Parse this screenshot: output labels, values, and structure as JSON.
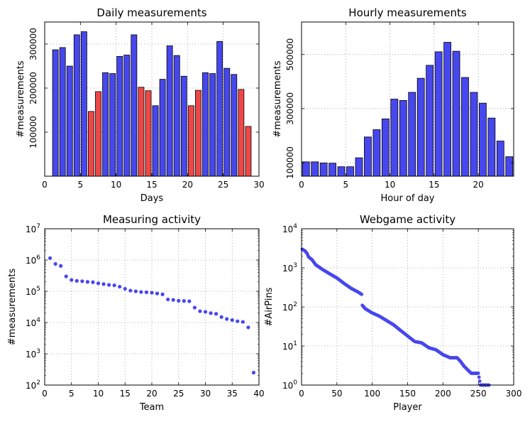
{
  "figure": {
    "panels": 4
  },
  "colors": {
    "blue": "#4747ee",
    "red": "#ee4747",
    "edge": "#000000",
    "grid": "#9a9a9a"
  },
  "chart_data": [
    {
      "id": "daily",
      "type": "bar",
      "title": "Daily measurements",
      "xlabel": "Days",
      "ylabel": "#measurements",
      "xlim": [
        0,
        30
      ],
      "ylim": [
        0,
        350000
      ],
      "xticks": [
        0,
        5,
        10,
        15,
        20,
        25,
        30
      ],
      "yticks": [
        100000,
        200000,
        300000
      ],
      "x": [
        1,
        2,
        3,
        4,
        5,
        6,
        7,
        8,
        9,
        10,
        11,
        12,
        13,
        14,
        15,
        16,
        17,
        18,
        19,
        20,
        21,
        22,
        23,
        24,
        25,
        26,
        27,
        28
      ],
      "values": [
        287000,
        292000,
        250000,
        321000,
        328000,
        147000,
        192000,
        235000,
        233000,
        272000,
        275000,
        321000,
        202000,
        194000,
        160000,
        220000,
        296000,
        274000,
        227000,
        160000,
        195000,
        235000,
        233000,
        306000,
        245000,
        231000,
        197000,
        113000
      ],
      "bar_colors": [
        "blue",
        "blue",
        "blue",
        "blue",
        "blue",
        "red",
        "red",
        "blue",
        "blue",
        "blue",
        "blue",
        "blue",
        "red",
        "red",
        "blue",
        "blue",
        "blue",
        "blue",
        "blue",
        "red",
        "red",
        "blue",
        "blue",
        "blue",
        "blue",
        "blue",
        "red",
        "red"
      ]
    },
    {
      "id": "hourly",
      "type": "bar",
      "title": "Hourly measurements",
      "xlabel": "Hour of day",
      "ylabel": "#measurements",
      "xlim": [
        0,
        24
      ],
      "ylim": [
        50000,
        620000
      ],
      "xticks": [
        0,
        5,
        10,
        15,
        20
      ],
      "yticks": [
        100000,
        300000,
        500000
      ],
      "x": [
        0,
        1,
        2,
        3,
        4,
        5,
        6,
        7,
        8,
        9,
        10,
        11,
        12,
        13,
        14,
        15,
        16,
        17,
        18,
        19,
        20,
        21,
        22,
        23
      ],
      "values": [
        103000,
        103000,
        99000,
        98000,
        85000,
        85000,
        118000,
        195000,
        222000,
        262000,
        335000,
        330000,
        360000,
        412000,
        460000,
        510000,
        545000,
        512000,
        415000,
        360000,
        320000,
        265000,
        180000,
        122000
      ],
      "bar_colors": [
        "blue",
        "blue",
        "blue",
        "blue",
        "blue",
        "blue",
        "blue",
        "blue",
        "blue",
        "blue",
        "blue",
        "blue",
        "blue",
        "blue",
        "blue",
        "blue",
        "blue",
        "blue",
        "blue",
        "blue",
        "blue",
        "blue",
        "blue",
        "blue"
      ]
    },
    {
      "id": "measuring",
      "type": "scatter",
      "title": "Measuring activity",
      "xlabel": "Team",
      "ylabel": "#measurements",
      "xlim": [
        0,
        40
      ],
      "yscale": "log",
      "ylim_exp": [
        2,
        7
      ],
      "xticks": [
        0,
        5,
        10,
        15,
        20,
        25,
        30,
        35,
        40
      ],
      "yticks_exp": [
        2,
        3,
        4,
        5,
        6,
        7
      ],
      "ytick_base": "10",
      "x": [
        1,
        2,
        3,
        4,
        5,
        6,
        7,
        8,
        9,
        10,
        11,
        12,
        13,
        14,
        15,
        16,
        17,
        18,
        19,
        20,
        21,
        22,
        23,
        24,
        25,
        26,
        27,
        28,
        29,
        30,
        31,
        32,
        33,
        34,
        35,
        36,
        37,
        38,
        39
      ],
      "values": [
        1150000,
        750000,
        650000,
        300000,
        230000,
        215000,
        210000,
        200000,
        195000,
        180000,
        170000,
        160000,
        155000,
        140000,
        120000,
        105000,
        100000,
        95000,
        93000,
        90000,
        85000,
        80000,
        55000,
        53000,
        50000,
        49000,
        48000,
        30000,
        23000,
        22000,
        20000,
        19000,
        15000,
        13000,
        12000,
        11000,
        10500,
        7000,
        250
      ]
    },
    {
      "id": "webgame",
      "type": "scatter",
      "title": "Webgame activity",
      "xlabel": "Player",
      "ylabel": "#AirPins",
      "xlim": [
        0,
        300
      ],
      "yscale": "log",
      "ylim_exp": [
        0,
        4
      ],
      "xticks": [
        0,
        50,
        100,
        150,
        200,
        250,
        300
      ],
      "yticks_exp": [
        0,
        1,
        2,
        3,
        4
      ],
      "ytick_base": "10",
      "curve": [
        [
          1,
          3000
        ],
        [
          5,
          2700
        ],
        [
          8,
          2300
        ],
        [
          10,
          1900
        ],
        [
          15,
          1600
        ],
        [
          20,
          1200
        ],
        [
          30,
          900
        ],
        [
          40,
          700
        ],
        [
          50,
          550
        ],
        [
          60,
          400
        ],
        [
          70,
          300
        ],
        [
          80,
          240
        ],
        [
          85,
          210
        ],
        [
          86,
          110
        ],
        [
          90,
          90
        ],
        [
          100,
          70
        ],
        [
          110,
          58
        ],
        [
          120,
          45
        ],
        [
          130,
          35
        ],
        [
          140,
          25
        ],
        [
          150,
          18
        ],
        [
          160,
          13
        ],
        [
          170,
          12
        ],
        [
          180,
          9
        ],
        [
          190,
          8
        ],
        [
          200,
          6
        ],
        [
          210,
          5
        ],
        [
          220,
          5
        ],
        [
          225,
          4
        ],
        [
          230,
          3
        ],
        [
          240,
          2
        ],
        [
          250,
          2
        ],
        [
          253,
          1
        ],
        [
          265,
          1
        ]
      ]
    }
  ]
}
